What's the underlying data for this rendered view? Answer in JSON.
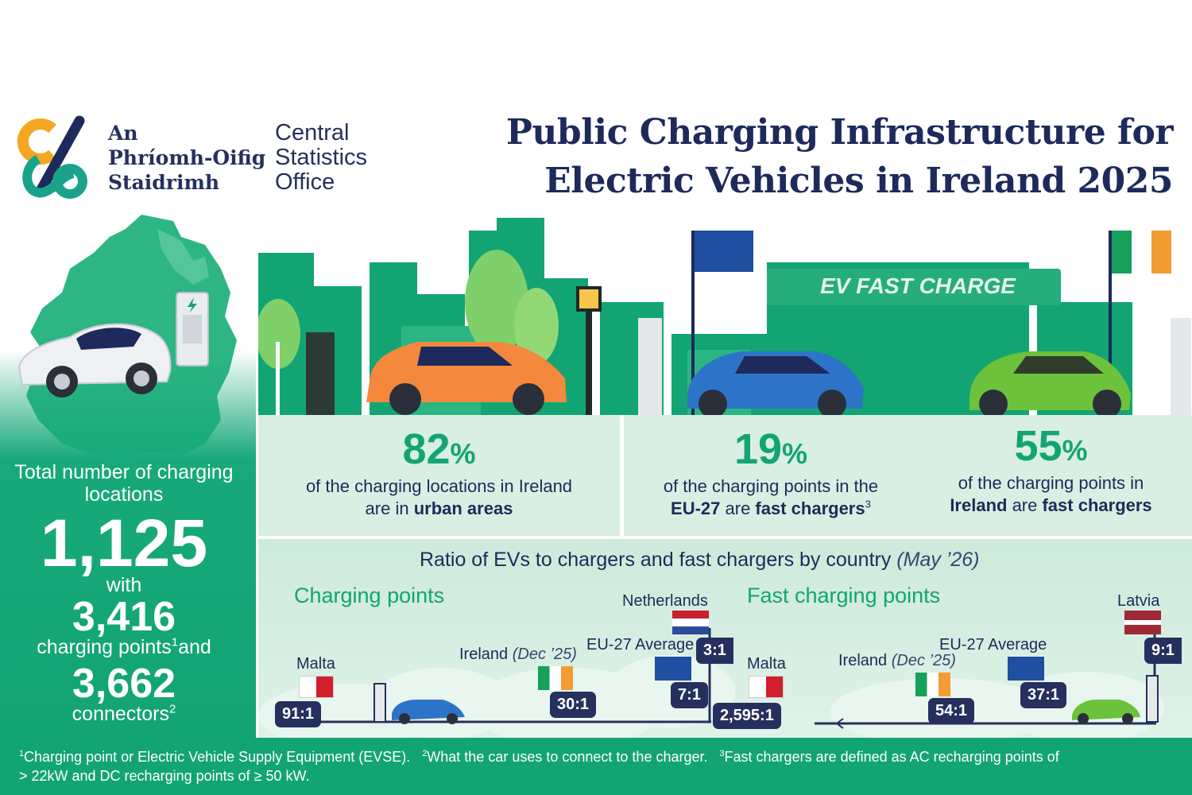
{
  "header": {
    "logo_irish": [
      "An",
      "Phríomh-Oifig",
      "Staidrimh"
    ],
    "logo_english": [
      "Central",
      "Statistics",
      "Office"
    ],
    "title_line1": "Public Charging Infrastructure for",
    "title_line2": "Electric Vehicles in Ireland 2025"
  },
  "scene": {
    "station_sign": "EV FAST CHARGE"
  },
  "left": {
    "locations_label": "Total number of charging locations",
    "locations_value": "1,125",
    "with": "with",
    "points_value": "3,416",
    "points_label": "charging points",
    "points_sup": "1",
    "and": "and",
    "connectors_value": "3,662",
    "connectors_label": "connectors",
    "connectors_sup": "2"
  },
  "stats": [
    {
      "value": "82",
      "unit": "%",
      "line1": "of the charging locations in Ireland",
      "line2_pre": "are in ",
      "line2_bold": "urban areas",
      "sup": ""
    },
    {
      "value": "19",
      "unit": "%",
      "line1": "of the charging points in the",
      "line2_bold_a": "EU-27",
      "line2_mid": " are ",
      "line2_bold_b": "fast chargers",
      "sup": "3"
    },
    {
      "value": "55",
      "unit": "%",
      "line1": "of the charging points in",
      "line2_bold_a": "Ireland",
      "line2_mid": " are ",
      "line2_bold_b": "fast chargers"
    }
  ],
  "ratio": {
    "title": "Ratio of EVs to chargers and fast chargers by country",
    "title_note": "(May ’26)",
    "charging": {
      "heading": "Charging points",
      "items": [
        {
          "country": "Malta",
          "value": "91:1"
        },
        {
          "country": "Ireland",
          "note": "(Dec ’25)",
          "value": "30:1"
        },
        {
          "country": "EU-27 Average",
          "value": "7:1"
        },
        {
          "country": "Netherlands",
          "value": "3:1"
        }
      ]
    },
    "fast": {
      "heading": "Fast charging points",
      "items": [
        {
          "country": "Malta",
          "value": "2,595:1"
        },
        {
          "country": "Ireland",
          "note": "(Dec ’25)",
          "value": "54:1"
        },
        {
          "country": "EU-27 Average",
          "value": "37:1"
        },
        {
          "country": "Latvia",
          "value": "9:1"
        }
      ]
    }
  },
  "footer": {
    "n1": "1",
    "t1": "Charging point or Electric Vehicle Supply Equipment (EVSE).",
    "n2": "2",
    "t2": "What the car uses to connect to the charger.",
    "n3": "3",
    "t3": "Fast chargers are defined as AC recharging points of",
    "t3b": "> 22kW and DC recharging points of ≥ 50 kW."
  },
  "colors": {
    "navy": "#1d2a5b",
    "green": "#13a474",
    "light_green": "#d9efe3",
    "orange": "#f39c34"
  }
}
